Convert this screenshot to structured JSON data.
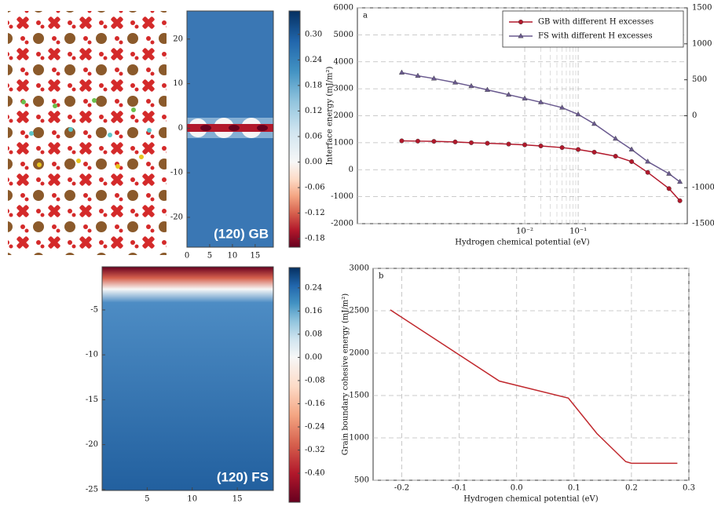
{
  "chart_data": [
    {
      "type": "heatmap",
      "label": "(120) GB",
      "xlim": [
        0,
        19
      ],
      "ylim": [
        -26.7,
        26.3
      ],
      "xticks": [
        0,
        5,
        10,
        15
      ],
      "yticks": [
        -20,
        -10,
        0,
        10,
        20
      ],
      "clim": [
        -0.2,
        0.355
      ],
      "cticks": [
        {
          "value": 0.3,
          "label": "0.30"
        },
        0.24,
        0.18,
        0.12,
        0.06,
        {
          "value": 0,
          "label": "0.00"
        },
        -0.06,
        -0.12,
        -0.18
      ]
    },
    {
      "type": "heatmap",
      "label": "(120) FS",
      "xlim": [
        0,
        19
      ],
      "ylim": [
        -25.1,
        -0.2
      ],
      "xticks": [
        5,
        10,
        15
      ],
      "yticks": [
        -25,
        -20,
        -15,
        -10,
        -5
      ],
      "clim": [
        -0.5,
        0.31
      ],
      "cticks": [
        0.24,
        0.16,
        0.08,
        {
          "value": 0,
          "label": "0.00"
        },
        -0.08,
        -0.16,
        -0.24,
        -0.32,
        {
          "value": -0.4,
          "label": "-0.40"
        }
      ]
    },
    {
      "type": "line",
      "panel_label": "a",
      "xlabel": "Hydrogen chemical potential (eV)",
      "ylabel": "Interface energy (mJ/m²)",
      "xscale": "log",
      "xlim": [
        7.4e-06,
        11
      ],
      "xticks": [
        {
          "value": 0.01,
          "label": "10⁻²"
        },
        {
          "value": 0.1,
          "label": "10⁻¹"
        }
      ],
      "xminorticks": [
        0.02,
        0.03,
        0.04,
        0.05,
        0.06,
        0.07,
        0.08,
        0.09
      ],
      "ylim": [
        -2000,
        6000
      ],
      "yticks": [
        -2000,
        -1000,
        0,
        1000,
        2000,
        3000,
        4000,
        5000,
        6000
      ],
      "y2lim": [
        -1500,
        1500
      ],
      "y2ticks": [
        -1500,
        -1000,
        0,
        500,
        1000,
        1500
      ],
      "grid": true,
      "legend": "upper right",
      "x": [
        5e-05,
        0.0001,
        0.0002,
        0.0005,
        0.001,
        0.002,
        0.005,
        0.01,
        0.02,
        0.05,
        0.1,
        0.2,
        0.5,
        1,
        2,
        5,
        8
      ],
      "series": [
        {
          "name": "GB with different H excesses",
          "color": "#b2182b",
          "marker": "circle",
          "values": [
            1070,
            1060,
            1050,
            1030,
            1000,
            980,
            950,
            920,
            880,
            820,
            750,
            650,
            500,
            300,
            -100,
            -700,
            -1150
          ]
        },
        {
          "name": "FS with different H excesses",
          "color": "#6a5a8f",
          "marker": "triangle",
          "values": [
            3600,
            3480,
            3380,
            3230,
            3100,
            2960,
            2780,
            2640,
            2500,
            2300,
            2050,
            1700,
            1150,
            750,
            300,
            -150,
            -450
          ]
        }
      ]
    },
    {
      "type": "line",
      "panel_label": "b",
      "xlabel": "Hydrogen chemical potential (eV)",
      "ylabel": "Grain boundary cohesive energy (mJ/m²)",
      "xlim": [
        -0.25,
        0.3
      ],
      "xticks": [
        -0.2,
        -0.1,
        {
          "value": 0,
          "label": "0.0"
        },
        0.1,
        0.2,
        0.3
      ],
      "ylim": [
        500,
        3000
      ],
      "yticks": [
        500,
        1000,
        1500,
        2000,
        2500,
        3000
      ],
      "grid": true,
      "color": "#c0282d",
      "x": [
        -0.22,
        -0.03,
        0.09,
        0.14,
        0.19,
        0.2,
        0.28
      ],
      "values": [
        2510,
        1670,
        1470,
        1050,
        720,
        700,
        700
      ]
    }
  ]
}
